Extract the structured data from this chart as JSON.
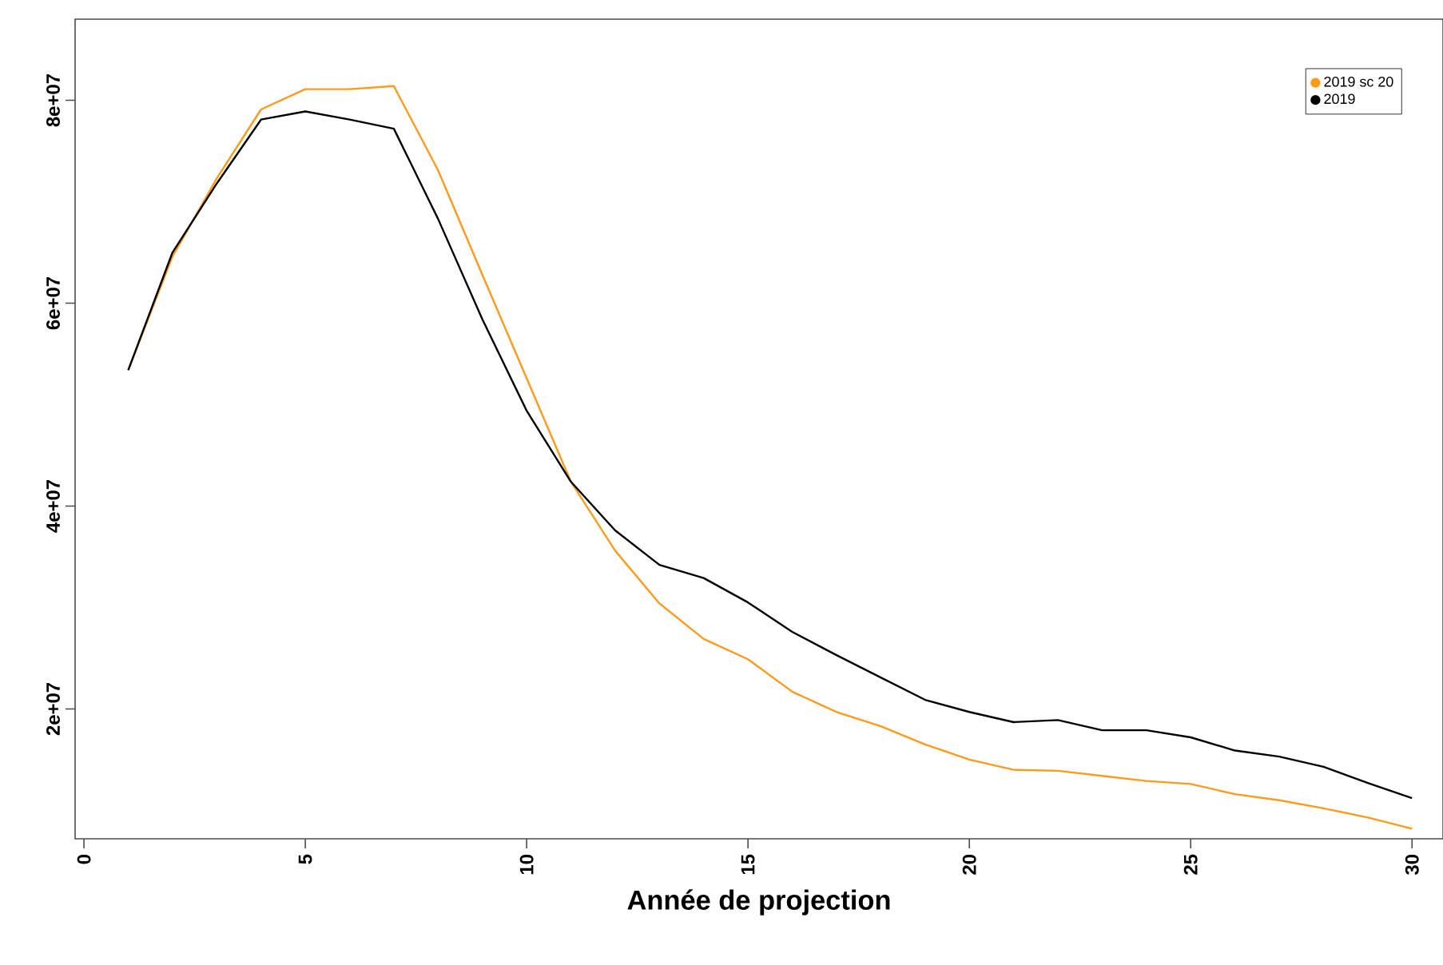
{
  "chart_data": {
    "type": "line",
    "xlabel": "Année de projection",
    "x": [
      1,
      2,
      3,
      4,
      5,
      6,
      7,
      8,
      9,
      10,
      11,
      12,
      13,
      14,
      15,
      16,
      17,
      18,
      19,
      20,
      21,
      22,
      23,
      24,
      25,
      26,
      27,
      28,
      29,
      30
    ],
    "series": [
      {
        "name": "2019 sc 20",
        "color": "#ff9a1a",
        "values": [
          53400000,
          64600000,
          72300000,
          79100000,
          81100000,
          81100000,
          81400000,
          73100000,
          62800000,
          52600000,
          42400000,
          35600000,
          30400000,
          26900000,
          24900000,
          21700000,
          19700000,
          18300000,
          16500000,
          15000000,
          14000000,
          13900000,
          13400000,
          12900000,
          12600000,
          11600000,
          11000000,
          10200000,
          9300000,
          8200000
        ]
      },
      {
        "name": "2019",
        "color": "#000000",
        "values": [
          53400000,
          65000000,
          71800000,
          78100000,
          78900000,
          78100000,
          77200000,
          68300000,
          58400000,
          49400000,
          42400000,
          37600000,
          34200000,
          32900000,
          30500000,
          27600000,
          25300000,
          23100000,
          20900000,
          19700000,
          18700000,
          18900000,
          17900000,
          17900000,
          17200000,
          15900000,
          15300000,
          14300000,
          12700000,
          11200000
        ]
      }
    ],
    "xlim": [
      -0.2,
      30.7
    ],
    "ylim": [
      7200000,
      88000000
    ],
    "xticks": [
      0,
      5,
      10,
      15,
      20,
      25,
      30
    ],
    "yticks": [
      {
        "value": 20000000,
        "label": "2e+07"
      },
      {
        "value": 40000000,
        "label": "4e+07"
      },
      {
        "value": 60000000,
        "label": "6e+07"
      },
      {
        "value": 80000000,
        "label": "8e+07"
      }
    ],
    "grid": false,
    "legend": "top right",
    "marker": "none",
    "line_style": "solid"
  }
}
